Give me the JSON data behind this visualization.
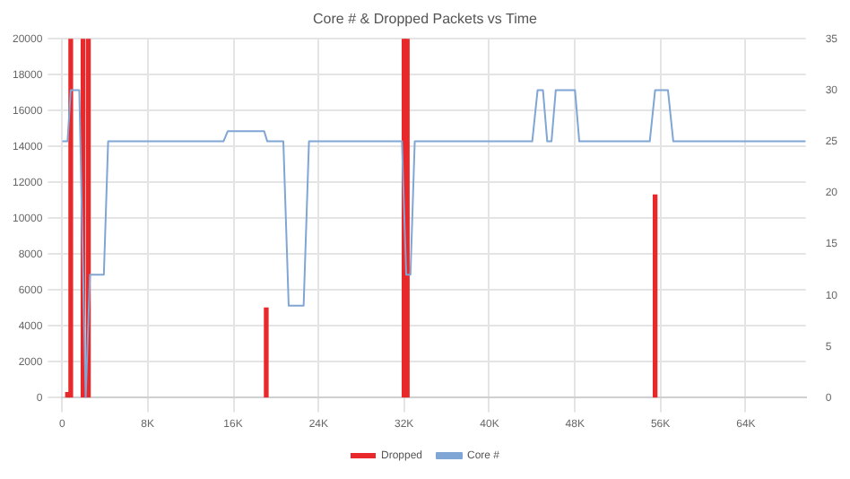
{
  "chart_data": {
    "type": "bar",
    "title": "Core # & Dropped Packets vs Time",
    "xlim": [
      0,
      69600
    ],
    "xticks": [
      0,
      {
        "value": 8000,
        "label": "8K"
      },
      {
        "value": 16000,
        "label": "16K"
      },
      {
        "value": 24000,
        "label": "24K"
      },
      {
        "value": 32000,
        "label": "32K"
      },
      {
        "value": 40000,
        "label": "40K"
      },
      {
        "value": 48000,
        "label": "48K"
      },
      {
        "value": 56000,
        "label": "56K"
      },
      {
        "value": 64000,
        "label": "64K"
      }
    ],
    "ylim": [
      0,
      20000
    ],
    "yticks": [
      0,
      2000,
      4000,
      6000,
      8000,
      10000,
      12000,
      14000,
      16000,
      18000,
      20000
    ],
    "y2lim": [
      0,
      35
    ],
    "y2ticks": [
      0,
      5,
      10,
      15,
      20,
      25,
      30,
      35
    ],
    "grid": true,
    "legend": "bottom",
    "series": [
      {
        "name": "Dropped",
        "color": "#e8282b",
        "x": [
          500,
          800,
          1950,
          2450,
          19100,
          32000,
          32300,
          55500
        ],
        "values": [
          300,
          20000,
          20000,
          20000,
          5000,
          20000,
          20000,
          11300
        ]
      },
      {
        "name": "Core #",
        "type": "line",
        "axis": "y2",
        "color": "#7fa6d4",
        "x": [
          0,
          500,
          800,
          1600,
          2200,
          2600,
          3900,
          4300,
          15100,
          15500,
          18900,
          19200,
          20700,
          21200,
          22600,
          23100,
          31800,
          32200,
          32600,
          33000,
          44000,
          44500,
          45000,
          45400,
          45800,
          46200,
          48000,
          48400,
          55000,
          55500,
          56700,
          57200,
          69600
        ],
        "values": [
          25,
          25,
          30,
          30,
          0,
          12,
          12,
          25,
          25,
          26,
          26,
          25,
          25,
          9,
          9,
          25,
          25,
          12,
          12,
          25,
          25,
          30,
          30,
          25,
          25,
          30,
          30,
          25,
          25,
          30,
          30,
          25,
          25
        ]
      }
    ]
  }
}
